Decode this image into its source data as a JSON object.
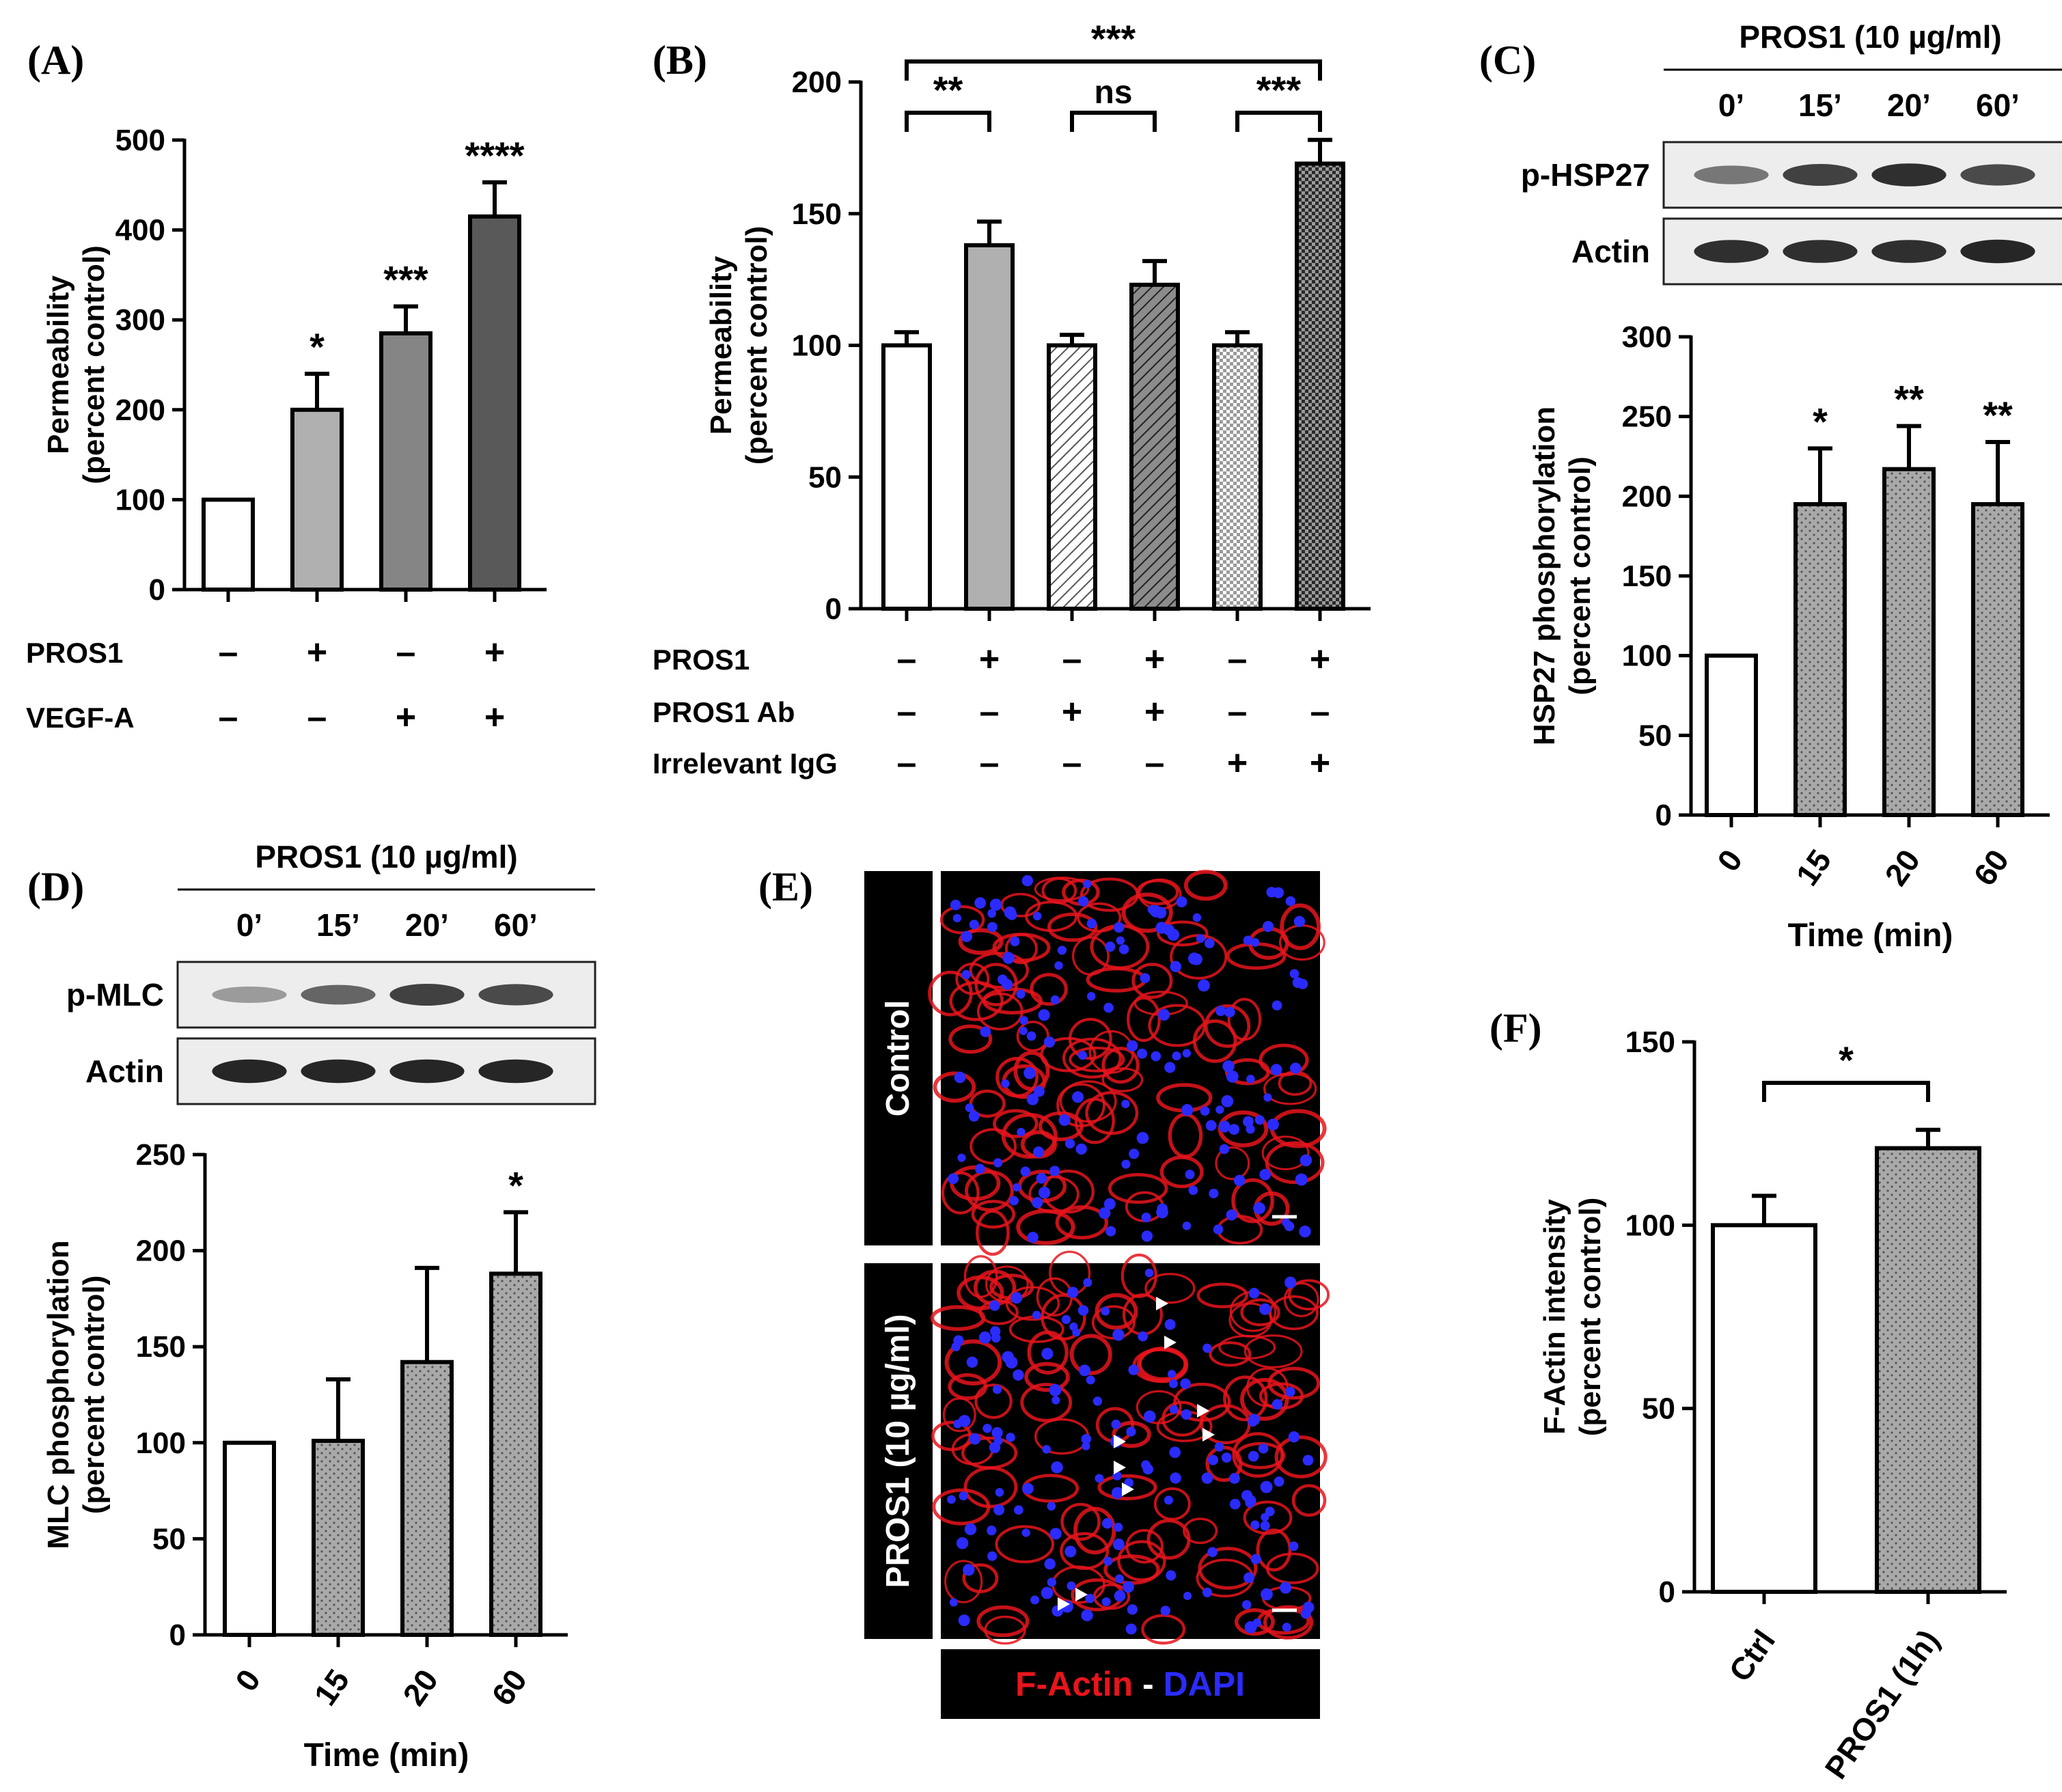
{
  "chart_data": [
    {
      "panel": "(A)",
      "type": "bar",
      "ylabel": [
        "Permeability",
        "(percent control)"
      ],
      "ylim": [
        0,
        500
      ],
      "yticks": [
        0,
        100,
        200,
        300,
        400,
        500
      ],
      "values": [
        100,
        200,
        285,
        415
      ],
      "errors": [
        0,
        40,
        30,
        38
      ],
      "fills": [
        "#ffffff",
        "#b0b0b0",
        "#858585",
        "#595959"
      ],
      "patterns": [
        "none",
        "none",
        "none",
        "none"
      ],
      "significance": [
        "",
        "*",
        "***",
        "****"
      ],
      "conditions": [
        {
          "label": "PROS1",
          "signs": [
            "–",
            "+",
            "–",
            "+"
          ]
        },
        {
          "label": "VEGF-A",
          "signs": [
            "–",
            "–",
            "+",
            "+"
          ]
        }
      ]
    },
    {
      "panel": "(B)",
      "type": "bar",
      "ylabel": [
        "Permeability",
        "(percent control)"
      ],
      "ylim": [
        0,
        200
      ],
      "yticks": [
        0,
        50,
        100,
        150,
        200
      ],
      "values": [
        100,
        138,
        100,
        123,
        100,
        169
      ],
      "errors": [
        5,
        9,
        4,
        9,
        5,
        9
      ],
      "fills": [
        "#ffffff",
        "#b0b0b0",
        "#ffffff",
        "#999999",
        "#ffffff",
        "#555555"
      ],
      "patterns": [
        "none",
        "none",
        "hatch-light",
        "hatch-dark",
        "check-light",
        "check-dark"
      ],
      "significance": [
        "",
        "",
        "",
        "",
        "",
        ""
      ],
      "brackets": [
        {
          "from": 0,
          "to": 1,
          "label": "**",
          "level": 0
        },
        {
          "from": 2,
          "to": 3,
          "label": "ns",
          "level": 0
        },
        {
          "from": 4,
          "to": 5,
          "label": "***",
          "level": 0
        },
        {
          "from": 0,
          "to": 5,
          "label": "***",
          "level": 1
        }
      ],
      "conditions": [
        {
          "label": "PROS1",
          "signs": [
            "–",
            "+",
            "–",
            "+",
            "–",
            "+"
          ]
        },
        {
          "label": "PROS1 Ab",
          "signs": [
            "–",
            "–",
            "+",
            "+",
            "–",
            "–"
          ]
        },
        {
          "label": "Irrelevant IgG",
          "signs": [
            "–",
            "–",
            "–",
            "–",
            "+",
            "+"
          ]
        }
      ]
    },
    {
      "panel": "(C)",
      "type": "bar",
      "ylabel": [
        "HSP27 phosphorylation",
        "(percent control)"
      ],
      "xlabel": "Time (min)",
      "categories": [
        "0",
        "15",
        "20",
        "60"
      ],
      "ylim": [
        0,
        300
      ],
      "yticks": [
        0,
        50,
        100,
        150,
        200,
        250,
        300
      ],
      "values": [
        100,
        195,
        217,
        195
      ],
      "errors": [
        0,
        35,
        27,
        39
      ],
      "fills": [
        "#ffffff",
        "#a9a9a9",
        "#a9a9a9",
        "#a9a9a9"
      ],
      "patterns": [
        "none",
        "dots",
        "dots",
        "dots"
      ],
      "significance": [
        "",
        "*",
        "**",
        "**"
      ],
      "blot": {
        "treatment": "PROS1 (10 µg/ml)",
        "timepoints": [
          "0’",
          "15’",
          "20’",
          "60’"
        ],
        "rows": [
          {
            "label": "p-HSP27",
            "intensity": [
              0.45,
              0.75,
              0.85,
              0.7
            ]
          },
          {
            "label": "Actin",
            "intensity": [
              0.85,
              0.85,
              0.85,
              0.9
            ]
          }
        ]
      }
    },
    {
      "panel": "(D)",
      "type": "bar",
      "ylabel": [
        "MLC phosphorylation",
        "(percent control)"
      ],
      "xlabel": "Time (min)",
      "categories": [
        "0",
        "15",
        "20",
        "60"
      ],
      "ylim": [
        0,
        250
      ],
      "yticks": [
        0,
        50,
        100,
        150,
        200,
        250
      ],
      "values": [
        100,
        101,
        142,
        188
      ],
      "errors": [
        0,
        32,
        49,
        32
      ],
      "fills": [
        "#ffffff",
        "#a9a9a9",
        "#a9a9a9",
        "#a9a9a9"
      ],
      "patterns": [
        "none",
        "dots",
        "dots",
        "dots"
      ],
      "significance": [
        "",
        "",
        "",
        "*"
      ],
      "blot": {
        "treatment": "PROS1 (10 µg/ml)",
        "timepoints": [
          "0’",
          "15’",
          "20’",
          "60’"
        ],
        "rows": [
          {
            "label": "p-MLC",
            "intensity": [
              0.25,
              0.55,
              0.75,
              0.7
            ]
          },
          {
            "label": "Actin",
            "intensity": [
              0.9,
              0.9,
              0.9,
              0.9
            ]
          }
        ]
      }
    },
    {
      "panel": "(F)",
      "type": "bar",
      "ylabel": [
        "F-Actin intensity",
        "(percent control)"
      ],
      "categories": [
        "Ctrl",
        "PROS1 (1h)"
      ],
      "ylim": [
        0,
        150
      ],
      "yticks": [
        0,
        50,
        100,
        150
      ],
      "values": [
        100,
        121
      ],
      "errors": [
        8,
        5
      ],
      "fills": [
        "#ffffff",
        "#a9a9a9"
      ],
      "patterns": [
        "none",
        "dots"
      ],
      "significance": [
        "",
        ""
      ],
      "brackets": [
        {
          "from": 0,
          "to": 1,
          "label": "*",
          "level": 0
        }
      ]
    }
  ],
  "microscopy": {
    "panel": "(E)",
    "rows": [
      "Control",
      "PROS1 (10 µg/ml)"
    ],
    "legend_red": "F-Actin",
    "legend_sep": "-",
    "legend_blue": "DAPI",
    "colors": {
      "red": "#e8141c",
      "blue": "#2b2bff",
      "background": "#000000"
    }
  }
}
